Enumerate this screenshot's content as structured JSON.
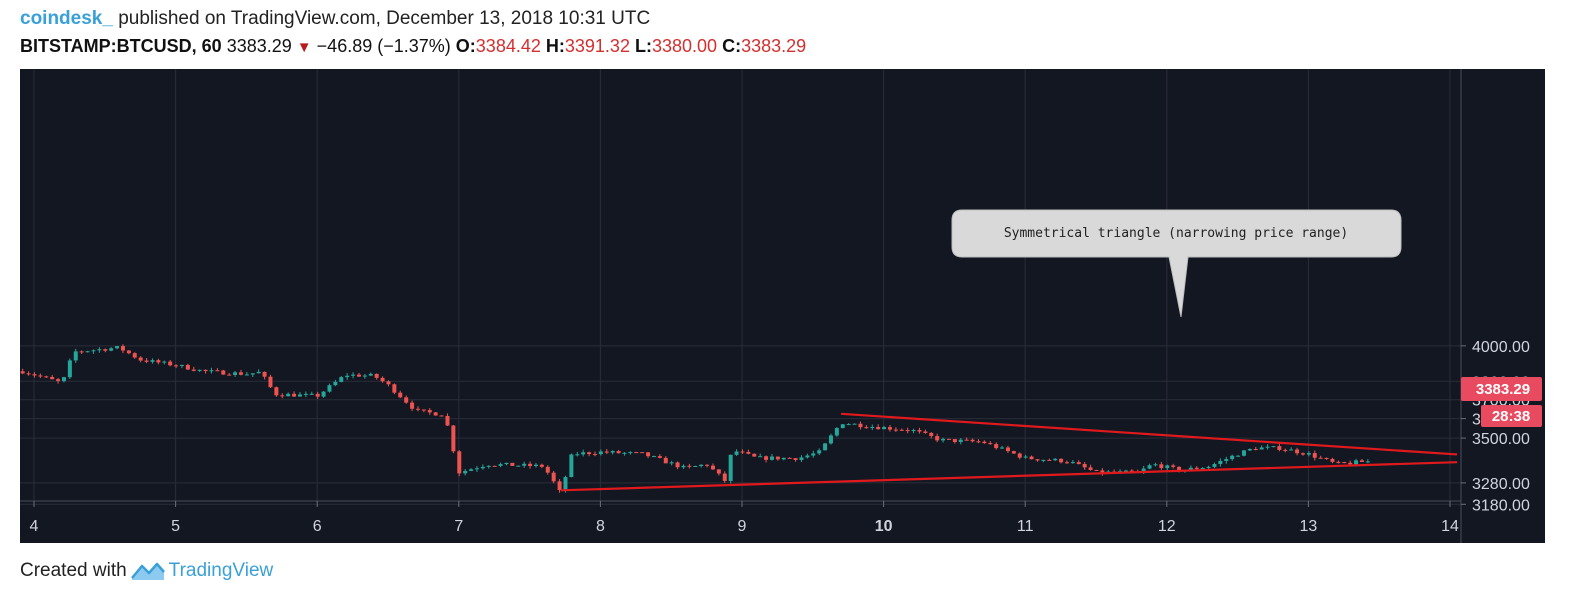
{
  "header": {
    "author": "coindesk_",
    "published": " published on TradingView.com, December 13, 2018 10:31 UTC",
    "symbol": "BITSTAMP:BTCUSD, 60",
    "last_price": "3383.29",
    "change": "−46.89 (−1.37%)",
    "open_label": "O:",
    "open": "3384.42",
    "high_label": "H:",
    "high": "3391.32",
    "low_label": "L:",
    "low": "3380.00",
    "close_label": "C:",
    "close": "3383.29"
  },
  "footer": {
    "created_with": "Created with",
    "brand": "TradingView"
  },
  "colors": {
    "background": "#131722",
    "grid": "#2a2e39",
    "up": "#26a69a",
    "down": "#ef5350",
    "trendline": "#e0191d",
    "price_tag": "#e84a5f"
  },
  "chart_data": {
    "type": "candlestick",
    "x_label_unit": "day of December 2018",
    "x_ticks": [
      "4",
      "5",
      "6",
      "7",
      "8",
      "9",
      "10",
      "11",
      "12",
      "13",
      "14"
    ],
    "bold_tick": "10",
    "y_ticks": [
      "4000.00",
      "3800.00",
      "3700.00",
      "3600.00",
      "3500.00",
      "3280.00",
      "3180.00"
    ],
    "y_scale": "log",
    "ylim": [
      3170,
      4070
    ],
    "price_tag": "3383.29",
    "countdown_tag": "28:38",
    "annotation": "Symmetrical triangle (narrowing price range)",
    "trendlines": [
      {
        "name": "upper",
        "from": {
          "day": 9.7,
          "price": 3625
        },
        "to": {
          "day": 14.05,
          "price": 3418
        }
      },
      {
        "name": "lower",
        "from": {
          "day": 7.72,
          "price": 3245
        },
        "to": {
          "day": 14.05,
          "price": 3380
        }
      }
    ],
    "price_path": [
      [
        3.9,
        3860
      ],
      [
        4.2,
        3790
      ],
      [
        4.28,
        3965
      ],
      [
        4.6,
        3990
      ],
      [
        4.75,
        3920
      ],
      [
        5.0,
        3890
      ],
      [
        5.2,
        3855
      ],
      [
        5.5,
        3840
      ],
      [
        5.6,
        3850
      ],
      [
        5.7,
        3730
      ],
      [
        6.0,
        3720
      ],
      [
        6.2,
        3835
      ],
      [
        6.4,
        3830
      ],
      [
        6.5,
        3780
      ],
      [
        6.7,
        3640
      ],
      [
        6.9,
        3620
      ],
      [
        7.0,
        3330
      ],
      [
        7.2,
        3370
      ],
      [
        7.6,
        3360
      ],
      [
        7.72,
        3230
      ],
      [
        7.8,
        3420
      ],
      [
        8.0,
        3430
      ],
      [
        8.3,
        3420
      ],
      [
        8.6,
        3350
      ],
      [
        8.75,
        3370
      ],
      [
        8.88,
        3290
      ],
      [
        8.93,
        3440
      ],
      [
        9.1,
        3400
      ],
      [
        9.4,
        3400
      ],
      [
        9.55,
        3430
      ],
      [
        9.7,
        3580
      ],
      [
        9.9,
        3560
      ],
      [
        10.2,
        3540
      ],
      [
        10.4,
        3490
      ],
      [
        10.7,
        3480
      ],
      [
        11.0,
        3400
      ],
      [
        11.3,
        3385
      ],
      [
        11.5,
        3330
      ],
      [
        11.8,
        3330
      ],
      [
        11.9,
        3370
      ],
      [
        12.1,
        3340
      ],
      [
        12.3,
        3360
      ],
      [
        12.5,
        3420
      ],
      [
        12.62,
        3450
      ],
      [
        12.8,
        3450
      ],
      [
        13.0,
        3420
      ],
      [
        13.2,
        3370
      ],
      [
        13.4,
        3383
      ]
    ]
  }
}
